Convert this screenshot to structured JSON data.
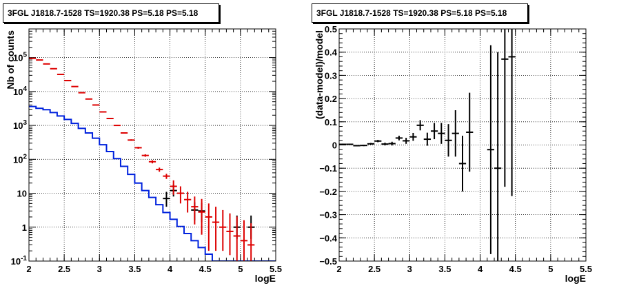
{
  "chart_data": [
    {
      "type": "step-histogram-with-errorbars",
      "title": "3FGL J1818.7-1528 TS=1920.38 PS=5.18 PS=5.18",
      "xlabel": "logE",
      "ylabel": "Nb of counts",
      "xlim": [
        2,
        5.5
      ],
      "ylim": [
        0.1,
        700000
      ],
      "yscale": "log",
      "grid": true,
      "x_ticks": [
        "2",
        "2.5",
        "3",
        "3.5",
        "4",
        "4.5",
        "5",
        "5.5"
      ],
      "y_ticks": [
        "10^{-1}",
        "1",
        "10",
        "10^{2}",
        "10^{3}",
        "10^{4}",
        "10^{5}"
      ],
      "series": [
        {
          "color": "#0022dd",
          "style": "step",
          "bin_edges": [
            2.0,
            2.1,
            2.2,
            2.3,
            2.4,
            2.5,
            2.6,
            2.7,
            2.8,
            2.9,
            3.0,
            3.1,
            3.2,
            3.3,
            3.4,
            3.5,
            3.6,
            3.7,
            3.8,
            3.9,
            4.0,
            4.1,
            4.2,
            4.3,
            4.4,
            4.5,
            4.6,
            4.7,
            4.8,
            4.9,
            5.0,
            5.1,
            5.2,
            5.3,
            5.4,
            5.5
          ],
          "values": [
            3600,
            3200,
            2900,
            2400,
            1900,
            1500,
            1150,
            820,
            600,
            420,
            270,
            170,
            105,
            62,
            36,
            20,
            12,
            7.5,
            4.6,
            2.7,
            1.7,
            1.05,
            0.65,
            0.4,
            0.25,
            0.16,
            0.1,
            0.1,
            0.1,
            0.1,
            0.1,
            0.1,
            0.1,
            0.1,
            0.1
          ]
        },
        {
          "color": "#dd0000",
          "style": "errorbars",
          "x": [
            2.05,
            2.15,
            2.25,
            2.35,
            2.45,
            2.55,
            2.65,
            2.75,
            2.85,
            2.95,
            3.05,
            3.15,
            3.25,
            3.35,
            3.45,
            3.55,
            3.65,
            3.75,
            3.85,
            3.95,
            4.05,
            4.15,
            4.25,
            4.35,
            4.45,
            4.55,
            4.65,
            4.75,
            4.85,
            4.95,
            5.05,
            5.15
          ],
          "y": [
            95000,
            85000,
            65000,
            47000,
            32000,
            21000,
            14000,
            9200,
            6000,
            4000,
            2500,
            1600,
            1000,
            600,
            370,
            220,
            130,
            85,
            50,
            32,
            16,
            10,
            6.5,
            4,
            2.8,
            2,
            1.4,
            1,
            0.75,
            0.55,
            0.4,
            0.3
          ],
          "yerr_low": [
            300,
            300,
            250,
            200,
            180,
            150,
            120,
            95,
            77,
            63,
            50,
            40,
            32,
            25,
            19,
            15,
            11,
            9,
            7,
            5.5,
            7,
            5,
            3.8,
            2.8,
            2.2,
            1.8,
            1.2,
            0.8,
            0.6,
            0.45,
            0.35,
            0.28
          ],
          "yerr_high": [
            300,
            300,
            250,
            200,
            180,
            150,
            120,
            95,
            77,
            63,
            50,
            40,
            32,
            25,
            19,
            15,
            11,
            9,
            7,
            5.5,
            8,
            6,
            4.5,
            4,
            4,
            3,
            2.6,
            2.2,
            1.8,
            1.5,
            1.2,
            1
          ]
        },
        {
          "color": "#000000",
          "style": "errorbars",
          "x": [
            3.95,
            4.05,
            4.35,
            4.45,
            4.95,
            5.15
          ],
          "y": [
            7,
            12,
            3.2,
            3,
            1,
            1
          ],
          "yerr_low": [
            3,
            4,
            1.6,
            1.6,
            0.55,
            0.55
          ],
          "yerr_high": [
            4,
            6,
            2.2,
            2.2,
            1.2,
            1.2
          ]
        }
      ]
    },
    {
      "type": "errorbars",
      "title": "3FGL J1818.7-1528 TS=1920.38 PS=5.18 PS=5.18",
      "xlabel": "logE",
      "ylabel": "(data-model)/model",
      "xlim": [
        2,
        5.5
      ],
      "ylim": [
        -0.5,
        0.5
      ],
      "grid": true,
      "x_ticks": [
        "2",
        "2.5",
        "3",
        "3.5",
        "4",
        "4.5",
        "5",
        "5.5"
      ],
      "y_ticks": [
        "-0.5",
        "-0.4",
        "-0.3",
        "-0.2",
        "-0.1",
        "0",
        "0.1",
        "0.2",
        "0.3",
        "0.4",
        "0.5"
      ],
      "series": [
        {
          "color": "#000000",
          "x": [
            2.05,
            2.15,
            2.25,
            2.35,
            2.45,
            2.55,
            2.65,
            2.75,
            2.85,
            2.95,
            3.05,
            3.15,
            3.25,
            3.35,
            3.45,
            3.55,
            3.65,
            3.75,
            3.85,
            4.15,
            4.25,
            4.35,
            4.45
          ],
          "y": [
            0.003,
            0.003,
            -0.003,
            -0.002,
            0.005,
            0.017,
            0.004,
            0.006,
            0.03,
            0.018,
            0.035,
            0.085,
            0.025,
            0.06,
            0.05,
            0.02,
            0.05,
            -0.08,
            0.055,
            -0.02,
            -0.1,
            0.37,
            0.38
          ],
          "yerr": [
            0.003,
            0.003,
            0.003,
            0.003,
            0.004,
            0.005,
            0.006,
            0.008,
            0.01,
            0.013,
            0.017,
            0.022,
            0.028,
            0.035,
            0.045,
            0.07,
            0.1,
            0.12,
            0.17,
            0.45,
            0.5,
            0.55,
            0.6
          ]
        }
      ]
    }
  ]
}
